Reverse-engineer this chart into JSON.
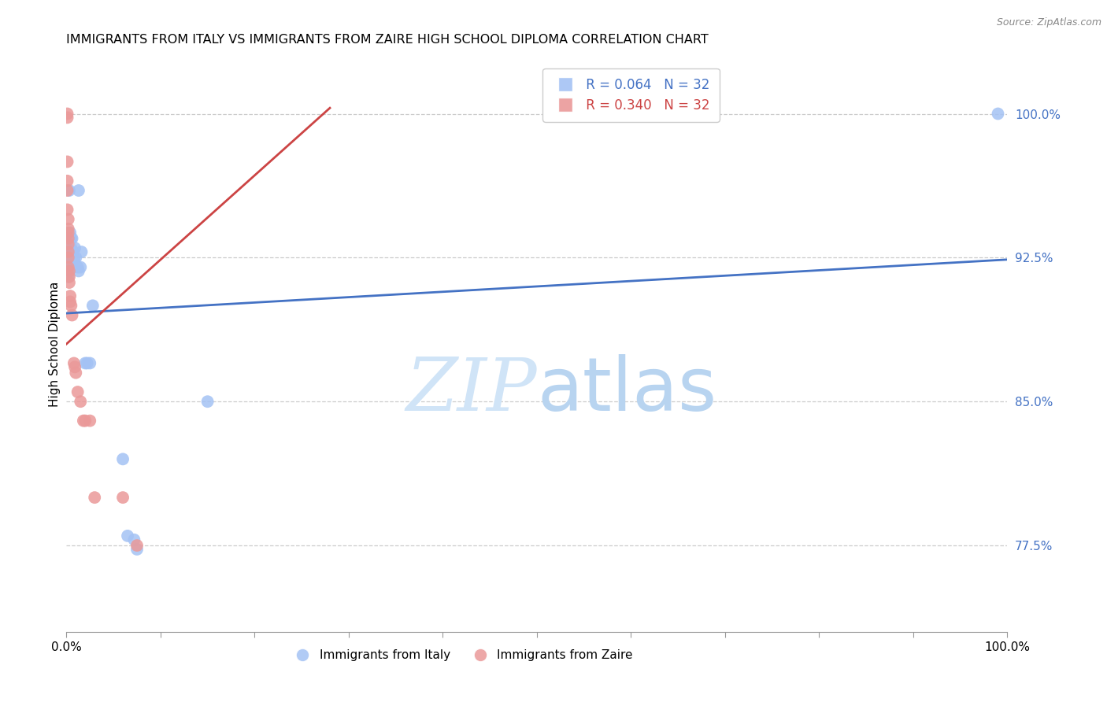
{
  "title": "IMMIGRANTS FROM ITALY VS IMMIGRANTS FROM ZAIRE HIGH SCHOOL DIPLOMA CORRELATION CHART",
  "source": "Source: ZipAtlas.com",
  "ylabel": "High School Diploma",
  "ylabel_right_labels": [
    "100.0%",
    "92.5%",
    "85.0%",
    "77.5%"
  ],
  "ylabel_right_values": [
    1.0,
    0.925,
    0.85,
    0.775
  ],
  "legend_r_italy": "R = 0.064",
  "legend_n_italy": "N = 32",
  "legend_r_zaire": "R = 0.340",
  "legend_n_zaire": "N = 32",
  "italy_color": "#a4c2f4",
  "zaire_color": "#ea9999",
  "italy_line_color": "#4472c4",
  "zaire_line_color": "#cc4444",
  "watermark_color": "#d0e4f7",
  "xlim": [
    0.0,
    1.0
  ],
  "ylim": [
    0.73,
    1.03
  ],
  "italy_x": [
    0.003,
    0.013,
    0.002,
    0.002,
    0.002,
    0.002,
    0.003,
    0.003,
    0.003,
    0.004,
    0.004,
    0.005,
    0.005,
    0.006,
    0.007,
    0.008,
    0.009,
    0.01,
    0.012,
    0.013,
    0.015,
    0.016,
    0.02,
    0.022,
    0.025,
    0.028,
    0.06,
    0.065,
    0.072,
    0.075,
    0.15,
    0.99
  ],
  "italy_y": [
    0.96,
    0.96,
    0.925,
    0.922,
    0.92,
    0.915,
    0.928,
    0.92,
    0.918,
    0.938,
    0.935,
    0.935,
    0.93,
    0.935,
    0.928,
    0.924,
    0.93,
    0.925,
    0.92,
    0.918,
    0.92,
    0.928,
    0.87,
    0.87,
    0.87,
    0.9,
    0.82,
    0.78,
    0.778,
    0.773,
    0.85,
    1.0
  ],
  "zaire_x": [
    0.001,
    0.001,
    0.001,
    0.001,
    0.001,
    0.001,
    0.002,
    0.002,
    0.002,
    0.002,
    0.002,
    0.002,
    0.002,
    0.002,
    0.003,
    0.003,
    0.003,
    0.004,
    0.004,
    0.005,
    0.006,
    0.008,
    0.009,
    0.01,
    0.012,
    0.015,
    0.018,
    0.02,
    0.025,
    0.03,
    0.06,
    0.075
  ],
  "zaire_y": [
    1.0,
    0.998,
    0.975,
    0.965,
    0.96,
    0.95,
    0.945,
    0.94,
    0.938,
    0.935,
    0.932,
    0.928,
    0.925,
    0.92,
    0.918,
    0.915,
    0.912,
    0.905,
    0.902,
    0.9,
    0.895,
    0.87,
    0.868,
    0.865,
    0.855,
    0.85,
    0.84,
    0.84,
    0.84,
    0.8,
    0.8,
    0.775
  ],
  "italy_trendline_x0": 0.0,
  "italy_trendline_y0": 0.896,
  "italy_trendline_x1": 1.0,
  "italy_trendline_y1": 0.924,
  "zaire_trendline_x0": 0.0,
  "zaire_trendline_y0": 0.88,
  "zaire_trendline_x1": 0.28,
  "zaire_trendline_y1": 1.003
}
